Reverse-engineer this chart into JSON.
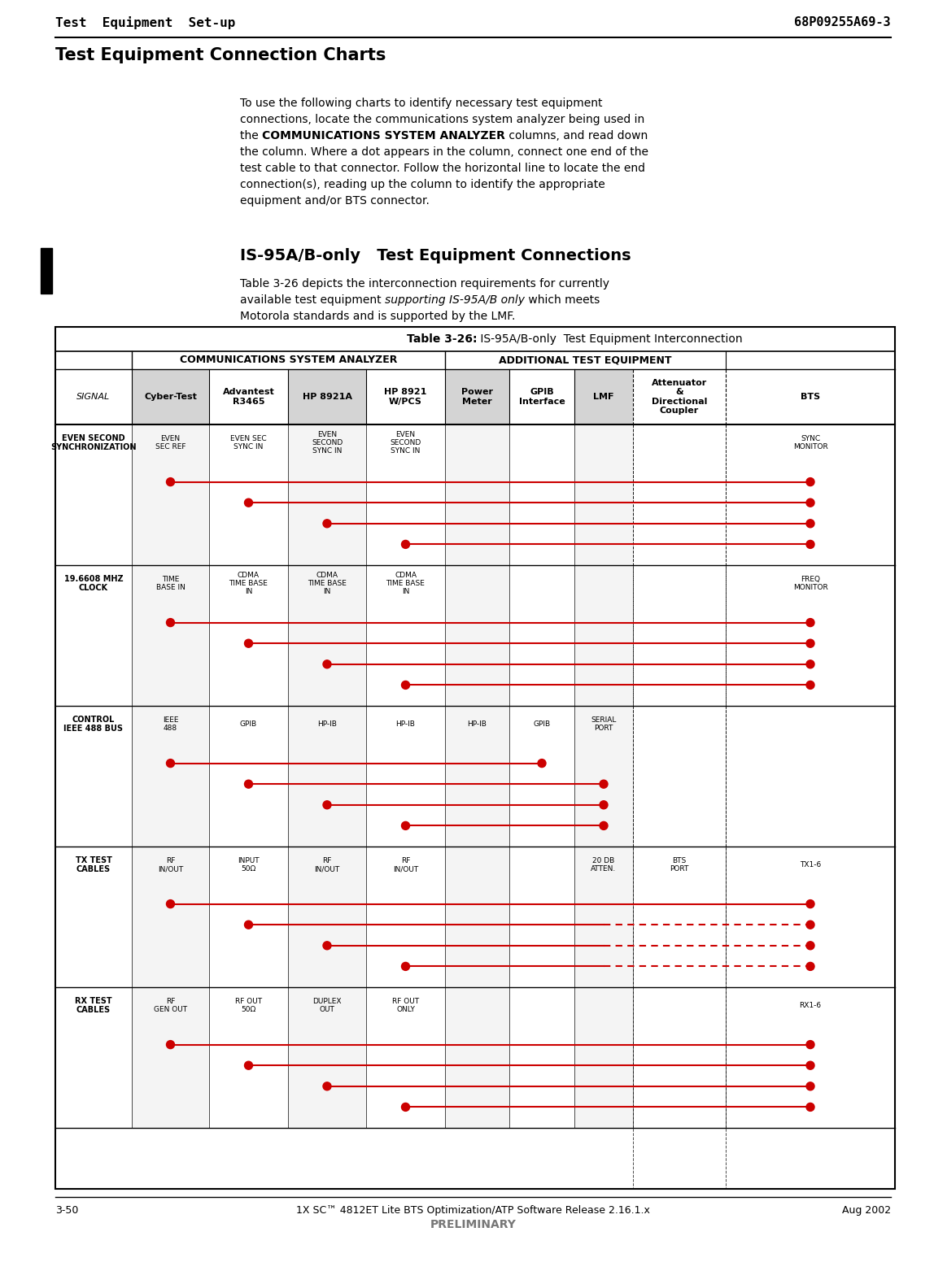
{
  "page_title_left": "Test  Equipment  Set-up",
  "page_title_right": "68P09255A69-3",
  "section_title": "Test Equipment Connection Charts",
  "body_indent": 295,
  "body_lines": [
    [
      "To use the following charts to identify necessary test equipment"
    ],
    [
      "connections, locate the communications system analyzer being used in"
    ],
    [
      "the ",
      "COMMUNICATIONS SYSTEM ANALYZER",
      " columns, and read down"
    ],
    [
      "the column. Where a dot appears in the column, connect one end of the"
    ],
    [
      "test cable to that connector. Follow the horizontal line to locate the end"
    ],
    [
      "connection(s), reading up the column to identify the appropriate"
    ],
    [
      "equipment and/or BTS connector."
    ]
  ],
  "subsection_title": "IS-95A/B-only   Test Equipment Connections",
  "sub_body_lines": [
    [
      "Table 3-26 depicts the interconnection requirements for currently"
    ],
    [
      "available test equipment ",
      "supporting IS-95A/B only",
      " which meets"
    ],
    [
      "Motorola standards and is supported by the LMF."
    ]
  ],
  "table_title_bold": "Table 3-26:",
  "table_title_rest": " IS-95A/B-only  Test Equipment Interconnection",
  "col_group1": "COMMUNICATIONS SYSTEM ANALYZER",
  "col_group2": "ADDITIONAL TEST EQUIPMENT",
  "footer_left": "3-50",
  "footer_center": "1X SC™ 4812ET Lite BTS Optimization/ATP Software Release 2.16.1.x",
  "footer_center2": "PRELIMINARY",
  "footer_right": "Aug 2002",
  "chapter_num": "3",
  "bg_color": "#ffffff",
  "dot_color": "#cc0000",
  "line_color": "#cc0000",
  "gray_col_color": "#d4d4d4",
  "signal_rows": [
    {
      "label": "EVEN SECOND\nSYNCHRONIZATION",
      "conn": [
        "EVEN\nSEC REF",
        "EVEN SEC\nSYNC IN",
        "EVEN\nSECOND\nSYNC IN",
        "EVEN\nSECOND\nSYNC IN",
        "",
        "",
        "",
        "",
        "SYNC\nMONITOR"
      ],
      "lines": [
        {
          "from_col": 0,
          "to_col": 8,
          "dashed_from": null
        },
        {
          "from_col": 1,
          "to_col": 8,
          "dashed_from": null
        },
        {
          "from_col": 2,
          "to_col": 8,
          "dashed_from": null
        },
        {
          "from_col": 3,
          "to_col": 8,
          "dashed_from": null
        }
      ]
    },
    {
      "label": "19.6608 MHZ\nCLOCK",
      "conn": [
        "TIME\nBASE IN",
        "CDMA\nTIME BASE\nIN",
        "CDMA\nTIME BASE\nIN",
        "CDMA\nTIME BASE\nIN",
        "",
        "",
        "",
        "",
        "FREQ\nMONITOR"
      ],
      "lines": [
        {
          "from_col": 0,
          "to_col": 8,
          "dashed_from": null
        },
        {
          "from_col": 1,
          "to_col": 8,
          "dashed_from": null
        },
        {
          "from_col": 2,
          "to_col": 8,
          "dashed_from": null
        },
        {
          "from_col": 3,
          "to_col": 8,
          "dashed_from": null
        }
      ]
    },
    {
      "label": "CONTROL\nIEEE 488 BUS",
      "conn": [
        "IEEE\n488",
        "GPIB",
        "HP-IB",
        "HP-IB",
        "HP-IB",
        "GPIB",
        "SERIAL\nPORT",
        "",
        ""
      ],
      "lines": [
        {
          "from_col": 0,
          "to_col": 5,
          "dashed_from": null
        },
        {
          "from_col": 1,
          "to_col": 6,
          "dashed_from": null
        },
        {
          "from_col": 2,
          "to_col": 6,
          "dashed_from": null
        },
        {
          "from_col": 3,
          "to_col": 6,
          "dashed_from": null
        }
      ]
    },
    {
      "label": "TX TEST\nCABLES",
      "conn": [
        "RF\nIN/OUT",
        "INPUT\n50Ω",
        "RF\nIN/OUT",
        "RF\nIN/OUT",
        "",
        "",
        "20 DB\nATTEN.",
        "BTS\nPORT",
        "TX1-6"
      ],
      "lines": [
        {
          "from_col": 0,
          "to_col": 8,
          "dashed_from": null
        },
        {
          "from_col": 1,
          "to_col": 8,
          "dashed_from": 6
        },
        {
          "from_col": 2,
          "to_col": 8,
          "dashed_from": 6
        },
        {
          "from_col": 3,
          "to_col": 8,
          "dashed_from": 6
        }
      ]
    },
    {
      "label": "RX TEST\nCABLES",
      "conn": [
        "RF\nGEN OUT",
        "RF OUT\n50Ω",
        "DUPLEX\nOUT",
        "RF OUT\nONLY",
        "",
        "",
        "",
        "",
        "RX1-6"
      ],
      "lines": [
        {
          "from_col": 0,
          "to_col": 8,
          "dashed_from": null
        },
        {
          "from_col": 1,
          "to_col": 8,
          "dashed_from": null
        },
        {
          "from_col": 2,
          "to_col": 8,
          "dashed_from": null
        },
        {
          "from_col": 3,
          "to_col": 8,
          "dashed_from": null
        }
      ]
    }
  ]
}
